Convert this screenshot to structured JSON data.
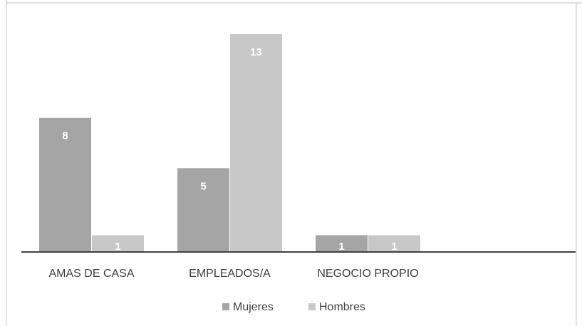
{
  "chart_data": {
    "type": "bar",
    "title": "",
    "xlabel": "",
    "ylabel": "",
    "categories": [
      "AMAS DE CASA",
      "EMPLEADOS/A",
      "NEGOCIO PROPIO"
    ],
    "series": [
      {
        "name": "Mujeres",
        "values": [
          8,
          5,
          1
        ],
        "color": "#a5a5a5"
      },
      {
        "name": "Hombres",
        "values": [
          1,
          13,
          1
        ],
        "color": "#c8c8c8"
      }
    ],
    "ylim": [
      0,
      13
    ],
    "grid": false,
    "legend": "bottom",
    "data_labels": true,
    "colors": {
      "axis": "#404040",
      "frame": "#bfbfbf",
      "label_text": "#ffffff",
      "category_text": "#404040"
    }
  }
}
